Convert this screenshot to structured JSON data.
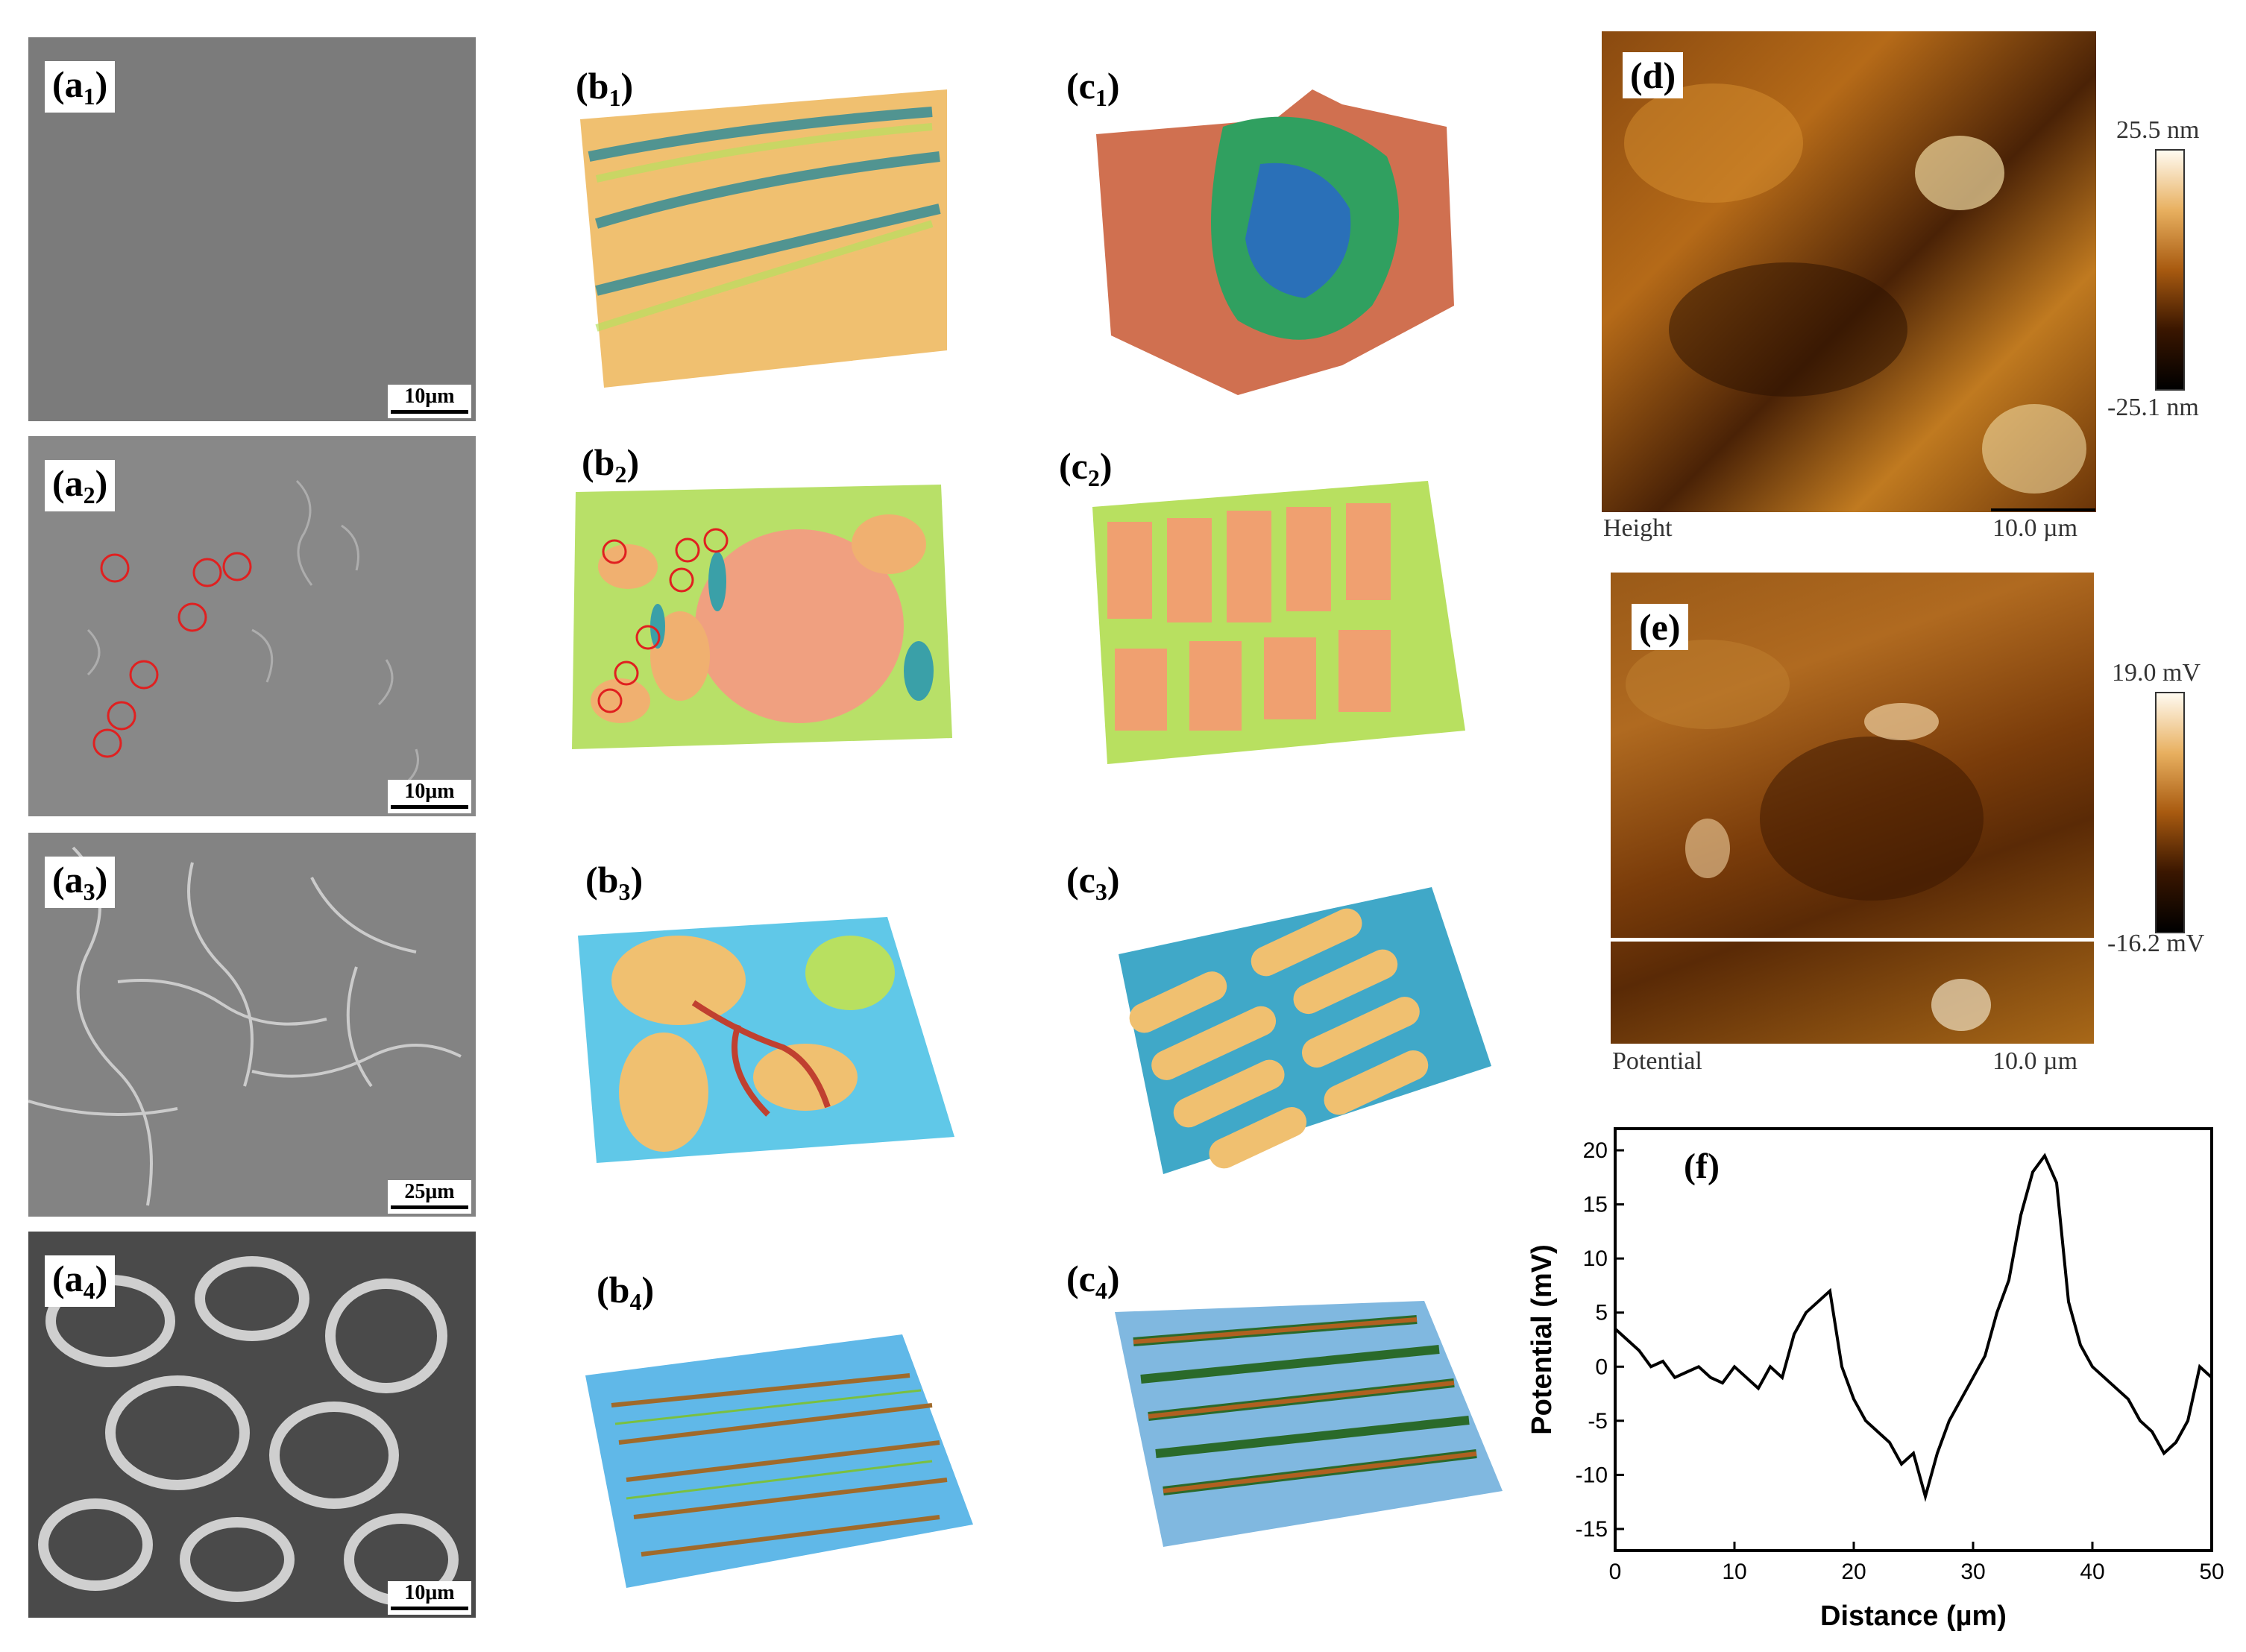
{
  "figure": {
    "sem_panels": [
      {
        "label": "a",
        "sub": "1",
        "scale": "10μm"
      },
      {
        "label": "a",
        "sub": "2",
        "scale": "10μm"
      },
      {
        "label": "a",
        "sub": "3",
        "scale": "25μm"
      },
      {
        "label": "a",
        "sub": "4",
        "scale": "10μm"
      }
    ],
    "b_panels": [
      {
        "label": "b",
        "sub": "1"
      },
      {
        "label": "b",
        "sub": "2"
      },
      {
        "label": "b",
        "sub": "3"
      },
      {
        "label": "b",
        "sub": "4"
      }
    ],
    "c_panels": [
      {
        "label": "c",
        "sub": "1"
      },
      {
        "label": "c",
        "sub": "2"
      },
      {
        "label": "c",
        "sub": "3"
      },
      {
        "label": "c",
        "sub": "4"
      }
    ],
    "height_map": {
      "label": "(d)",
      "caption": "Height",
      "scale": "10.0 µm",
      "cbar_max": "25.5 nm",
      "cbar_min": "-25.1 nm"
    },
    "potential_map": {
      "label": "(e)",
      "caption": "Potential",
      "scale": "10.0 µm",
      "cbar_max": "19.0 mV",
      "cbar_min": "-16.2 mV"
    },
    "profile_label": "(f)"
  },
  "chart_data": {
    "type": "line",
    "xlabel": "Distance (µm)",
    "ylabel": "Potential (mV)",
    "xlim": [
      0,
      50
    ],
    "ylim": [
      -17,
      22
    ],
    "xticks": [
      "0",
      "10",
      "20",
      "30",
      "40",
      "50"
    ],
    "yticks": [
      "20",
      "15",
      "10",
      "5",
      "0",
      "-5",
      "-10",
      "-15"
    ],
    "series": [
      {
        "x": [
          0,
          1,
          2,
          3,
          4,
          5,
          6,
          7,
          8,
          9,
          10,
          11,
          12,
          13,
          14,
          15,
          16,
          17,
          18,
          19,
          20,
          21,
          22,
          23,
          24,
          25,
          26,
          27,
          28,
          29,
          30,
          31,
          32,
          33,
          34,
          35,
          36,
          37,
          38,
          39,
          40,
          41,
          42,
          43,
          44,
          45,
          46,
          47,
          48,
          49,
          50
        ],
        "values": [
          3.5,
          2.5,
          1.5,
          0,
          0.5,
          -1,
          -0.5,
          0,
          -1,
          -1.5,
          0,
          -1,
          -2,
          0,
          -1,
          3,
          5,
          6,
          7,
          0,
          -3,
          -5,
          -6,
          -7,
          -9,
          -8,
          -12,
          -8,
          -5,
          -3,
          -1,
          1,
          5,
          8,
          14,
          18,
          19.5,
          17,
          6,
          2,
          0,
          -1,
          -2,
          -3,
          -5,
          -6,
          -8,
          -7,
          -5,
          0,
          -1
        ]
      }
    ]
  }
}
